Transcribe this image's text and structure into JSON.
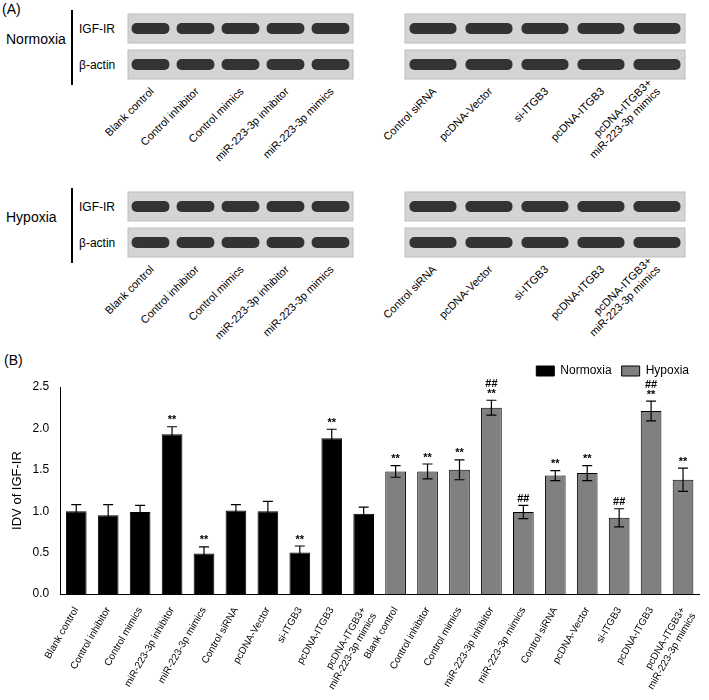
{
  "panel_a": {
    "label": "(A)",
    "conditions": [
      {
        "name": "Normoxia",
        "rows": [
          "IGF-IR",
          "β-actin"
        ],
        "groups": [
          [
            "Blank control",
            "Control inhibitor",
            "Control mimics",
            "miR-223-3p inhibitor",
            "miR-223-3p mimics"
          ],
          [
            "Control siRNA",
            "pcDNA-Vector",
            "si-ITGB3",
            "pcDNA-ITGB3",
            "pcDNA-ITGB3+\nmiR-223-3p mimics"
          ]
        ]
      },
      {
        "name": "Hypoxia",
        "rows": [
          "IGF-IR",
          "β-actin"
        ],
        "groups": [
          [
            "Blank control",
            "Control inhibitor",
            "Control mimics",
            "miR-223-3p inhibitor",
            "miR-223-3p mimics"
          ],
          [
            "Control siRNA",
            "pcDNA-Vector",
            "si-ITGB3",
            "pcDNA-ITGB3",
            "pcDNA-ITGB3+\nmiR-223-3p mimics"
          ]
        ]
      }
    ]
  },
  "panel_b_label": "(B)",
  "chart_data": {
    "type": "bar",
    "y_label": "IDV of IGF-IR",
    "categories": [
      "Blank control",
      "Control inhibitor",
      "Control mimics",
      "miR-223-3p inhibitor",
      "miR-223-3p mimics",
      "Control siRNA",
      "pcDNA-Vector",
      "si-ITGB3",
      "pcDNA-ITGB3",
      "pcDNA-ITGB3+\nmiR-223-3p mimics",
      "Blank control",
      "Control inhibitor",
      "Control mimics",
      "miR-223-3p inhibitor",
      "miR-223-3p mimics",
      "Control siRNA",
      "pcDNA-Vector",
      "si-ITGB3",
      "pcDNA-ITGB3",
      "pcDNA-ITGB3+\nmiR-223-3p mimics"
    ],
    "series": [
      {
        "name": "Normoxia",
        "color": "#000000",
        "values": [
          1.0,
          0.95,
          0.99,
          1.93,
          0.49,
          1.01,
          1.0,
          0.5,
          1.88,
          0.97,
          null,
          null,
          null,
          null,
          null,
          null,
          null,
          null,
          null,
          null
        ],
        "errors": [
          0.08,
          0.13,
          0.08,
          0.09,
          0.08,
          0.07,
          0.12,
          0.08,
          0.11,
          0.08,
          null,
          null,
          null,
          null,
          null,
          null,
          null,
          null,
          null,
          null
        ],
        "annotations": [
          [],
          [],
          [],
          [
            "**"
          ],
          [
            "**"
          ],
          [],
          [],
          [
            "**"
          ],
          [
            "**"
          ],
          [],
          [],
          [],
          [],
          [],
          [],
          [],
          [],
          [],
          [],
          []
        ]
      },
      {
        "name": "Hypoxia",
        "color": "#808080",
        "values": [
          null,
          null,
          null,
          null,
          null,
          null,
          null,
          null,
          null,
          null,
          1.48,
          1.48,
          1.5,
          2.25,
          0.99,
          1.43,
          1.46,
          0.92,
          2.21,
          1.38
        ],
        "errors": [
          null,
          null,
          null,
          null,
          null,
          null,
          null,
          null,
          null,
          null,
          0.07,
          0.09,
          0.12,
          0.09,
          0.08,
          0.06,
          0.09,
          0.11,
          0.12,
          0.14
        ],
        "annotations": [
          [],
          [],
          [],
          [],
          [],
          [],
          [],
          [],
          [],
          [],
          [
            "**"
          ],
          [
            "**"
          ],
          [
            "**"
          ],
          [
            "##",
            "**"
          ],
          [
            "##"
          ],
          [
            "**"
          ],
          [
            "**"
          ],
          [
            "##"
          ],
          [
            "##",
            "**"
          ],
          [
            "**"
          ]
        ]
      }
    ],
    "ylim": [
      0,
      2.5
    ],
    "yticks": [
      {
        "value": 0,
        "label": "0.0"
      },
      0.5,
      {
        "value": 1,
        "label": "1.0"
      },
      1.5,
      {
        "value": 2,
        "label": "2.0"
      },
      2.5
    ],
    "grid": false,
    "legend": "upper right"
  }
}
